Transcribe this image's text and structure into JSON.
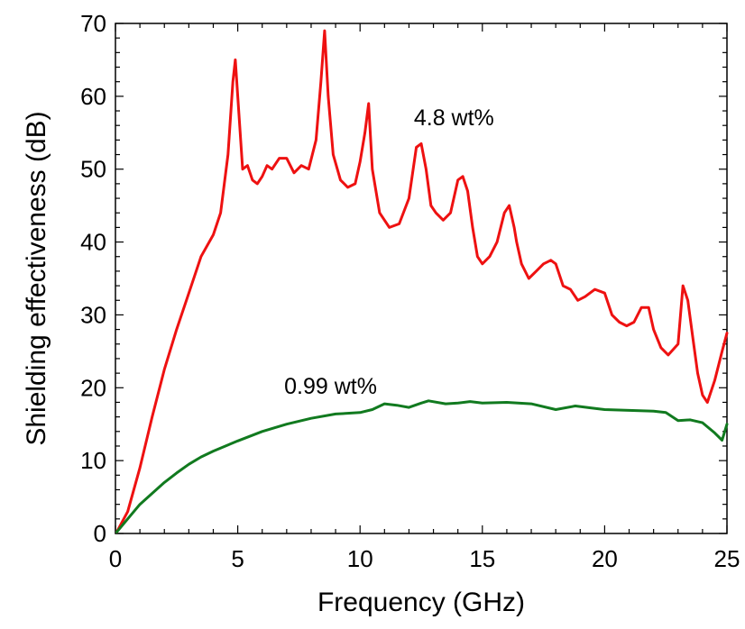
{
  "chart_data": {
    "type": "line",
    "xlabel": "Frequency (GHz)",
    "ylabel": "Shielding effectiveness (dB)",
    "xlim": [
      0,
      25
    ],
    "ylim": [
      0,
      70
    ],
    "xticks": [
      0,
      5,
      10,
      15,
      20,
      25
    ],
    "yticks": [
      0,
      10,
      20,
      30,
      40,
      50,
      60,
      70
    ],
    "grid": false,
    "legend": "none",
    "annotations": [
      {
        "text": "4.8 wt%",
        "x": 12.2,
        "y": 56,
        "series": 0
      },
      {
        "text": "0.99 wt%",
        "x": 6.9,
        "y": 19.2,
        "series": 1
      }
    ],
    "series": [
      {
        "label_ref": 0,
        "color": "#ee1111",
        "x": [
          0.05,
          0.5,
          1.0,
          1.5,
          2.0,
          2.5,
          3.0,
          3.5,
          4.0,
          4.3,
          4.6,
          4.8,
          4.9,
          5.0,
          5.2,
          5.4,
          5.6,
          5.8,
          6.0,
          6.2,
          6.4,
          6.7,
          7.0,
          7.3,
          7.6,
          7.9,
          8.2,
          8.4,
          8.55,
          8.7,
          8.9,
          9.2,
          9.5,
          9.8,
          10.0,
          10.2,
          10.35,
          10.5,
          10.8,
          11.2,
          11.6,
          12.0,
          12.3,
          12.5,
          12.7,
          12.9,
          13.1,
          13.4,
          13.7,
          14.0,
          14.2,
          14.4,
          14.6,
          14.8,
          15.0,
          15.3,
          15.6,
          15.9,
          16.1,
          16.3,
          16.4,
          16.6,
          16.9,
          17.2,
          17.5,
          17.8,
          18.0,
          18.3,
          18.6,
          18.9,
          19.2,
          19.6,
          20.0,
          20.3,
          20.6,
          20.9,
          21.2,
          21.5,
          21.8,
          22.0,
          22.3,
          22.6,
          23.0,
          23.2,
          23.4,
          23.6,
          23.8,
          24.0,
          24.2,
          24.5,
          24.8,
          25.0
        ],
        "y": [
          0.2,
          3,
          9,
          16,
          22.5,
          28,
          33,
          38,
          41,
          44,
          52,
          62,
          65,
          60,
          50,
          50.5,
          48.5,
          48,
          49,
          50.5,
          50,
          51.5,
          51.5,
          49.5,
          50.5,
          50,
          54,
          62,
          69,
          60,
          52,
          48.5,
          47.5,
          48,
          51,
          55,
          59,
          50,
          44,
          42,
          42.5,
          46,
          53,
          53.5,
          50,
          45,
          44,
          43,
          44,
          48.5,
          49,
          47,
          42,
          38,
          37,
          38,
          40,
          44,
          45,
          42,
          40,
          37,
          35,
          36,
          37,
          37.5,
          37,
          34,
          33.5,
          32,
          32.5,
          33.5,
          33,
          30,
          29,
          28.5,
          29,
          31,
          31,
          28,
          25.5,
          24.5,
          26,
          34,
          32,
          27,
          22,
          19,
          18,
          21,
          25,
          27.5
        ]
      },
      {
        "label_ref": 1,
        "color": "#117a1f",
        "x": [
          0.05,
          0.5,
          1,
          1.5,
          2,
          2.5,
          3,
          3.5,
          4,
          5,
          6,
          7,
          8,
          9,
          10,
          10.5,
          11,
          11.5,
          12,
          12.5,
          12.8,
          13.5,
          14,
          14.5,
          15,
          16,
          17,
          18,
          18.8,
          19.5,
          20,
          21,
          22,
          22.5,
          23,
          23.5,
          24,
          24.5,
          24.8,
          25
        ],
        "y": [
          0.2,
          2,
          4,
          5.5,
          7,
          8.3,
          9.5,
          10.5,
          11.3,
          12.7,
          14,
          15,
          15.8,
          16.4,
          16.6,
          17,
          17.8,
          17.6,
          17.3,
          17.9,
          18.2,
          17.8,
          17.9,
          18.1,
          17.9,
          18.0,
          17.8,
          17.0,
          17.5,
          17.2,
          17.0,
          16.9,
          16.8,
          16.6,
          15.5,
          15.6,
          15.2,
          13.8,
          12.8,
          15.0
        ]
      }
    ]
  }
}
